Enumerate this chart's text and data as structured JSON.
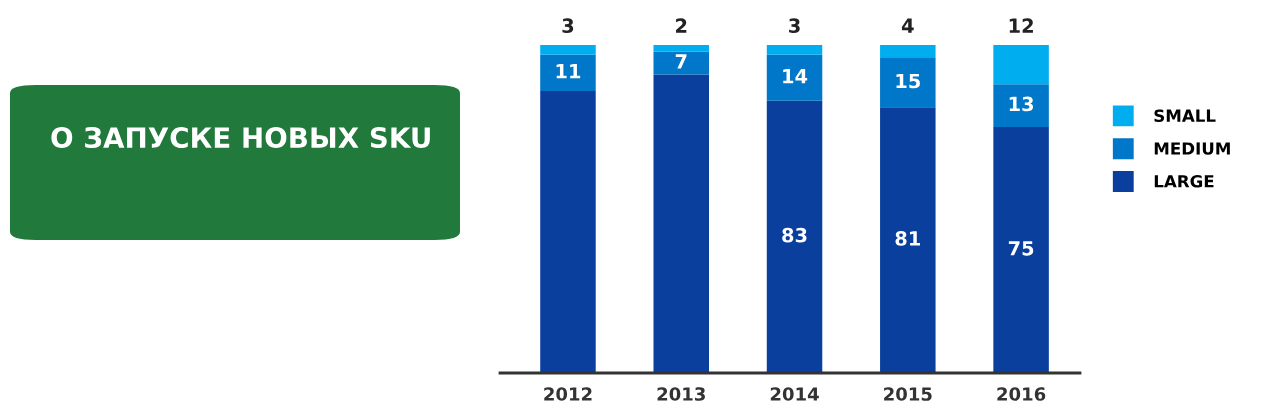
{
  "chart_data": {
    "type": "bar",
    "title": "О ЗАПУСКЕ НОВЫХ SKU",
    "stacked": true,
    "categories": [
      "2012",
      "2013",
      "2014",
      "2015",
      "2016"
    ],
    "series": [
      {
        "name": "LARGE",
        "color": "#0a3f9e",
        "values": [
          86,
          91,
          83,
          81,
          75
        ],
        "value_labels": [
          null,
          null,
          "83",
          "81",
          "75"
        ]
      },
      {
        "name": "MEDIUM",
        "color": "#0077c8",
        "values": [
          11,
          7,
          14,
          15,
          13
        ],
        "value_labels": [
          "11",
          "7",
          "14",
          "15",
          "13"
        ]
      },
      {
        "name": "SMALL",
        "color": "#00aeef",
        "values": [
          3,
          2,
          3,
          4,
          12
        ],
        "value_labels": [
          "3",
          "2",
          "3",
          "4",
          "12"
        ]
      }
    ],
    "ylim": [
      0,
      100
    ],
    "legend": "right",
    "grid": false,
    "tick_labels": "x"
  }
}
